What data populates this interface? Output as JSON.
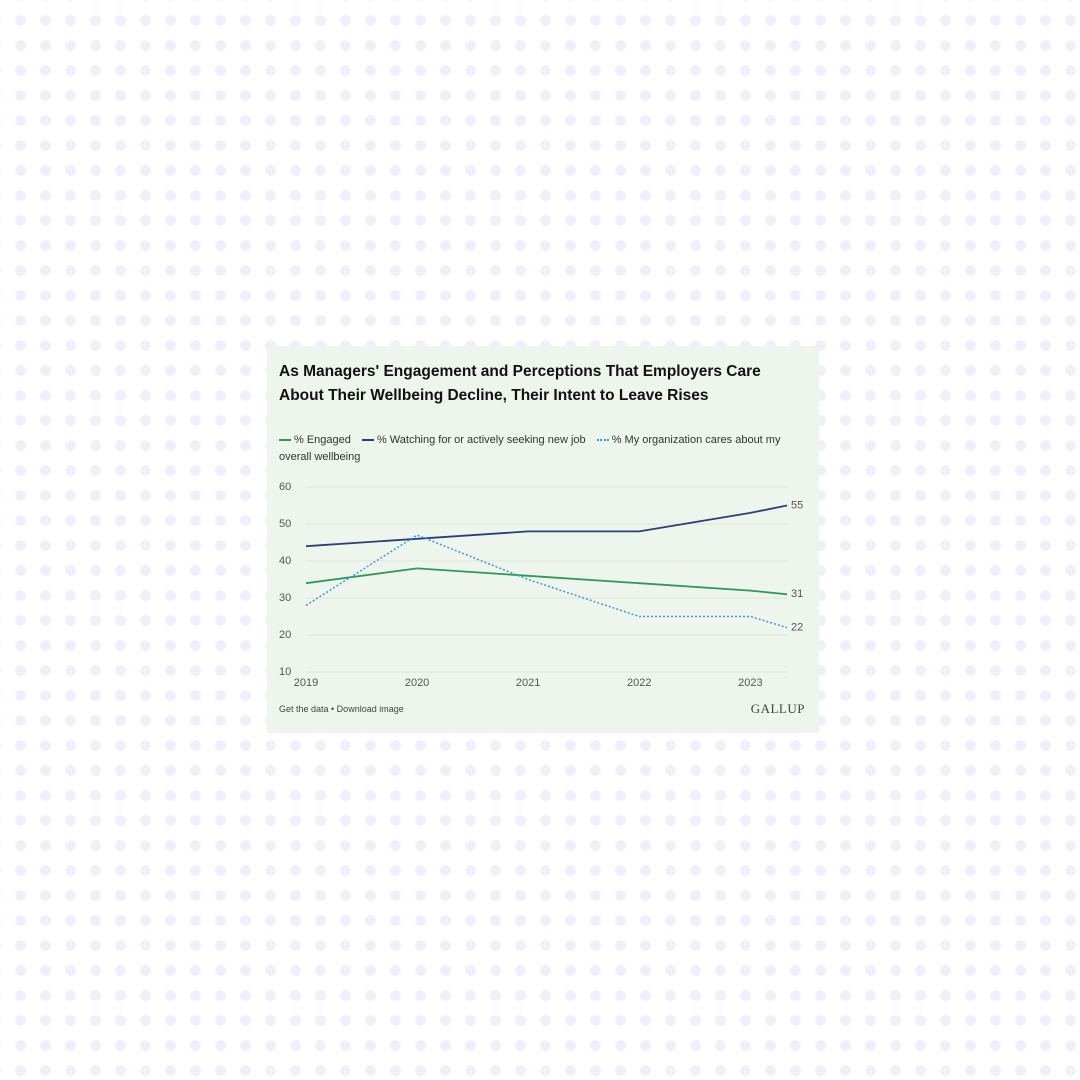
{
  "chart_data": {
    "type": "line",
    "title": "As Managers' Engagement and Perceptions That Employers Care About Their Wellbeing Decline, Their Intent to Leave Rises",
    "x": [
      2019,
      2020,
      2021,
      2022,
      2023,
      2023.33
    ],
    "series": [
      {
        "name": "% Engaged",
        "color": "#2e9a5a",
        "style": "solid",
        "values": [
          34,
          38,
          36,
          34,
          32,
          31
        ]
      },
      {
        "name": "% Watching for or actively seeking new job",
        "color": "#2b3f7f",
        "style": "solid",
        "values": [
          44,
          46,
          48,
          48,
          53,
          55
        ]
      },
      {
        "name": "% My organization cares about my overall wellbeing",
        "color": "#3c9ad6",
        "style": "dotted",
        "values": [
          28,
          47,
          35,
          25,
          25,
          22
        ]
      }
    ],
    "xlim": [
      2019,
      2023.33
    ],
    "xticks": [
      2019,
      2020,
      2021,
      2022,
      2023
    ],
    "ylim": [
      10,
      60
    ],
    "yticks": [
      10,
      20,
      30,
      40,
      50,
      60
    ],
    "grid": true,
    "footer": "Get the data • Download image",
    "logo": "GALLUP"
  }
}
